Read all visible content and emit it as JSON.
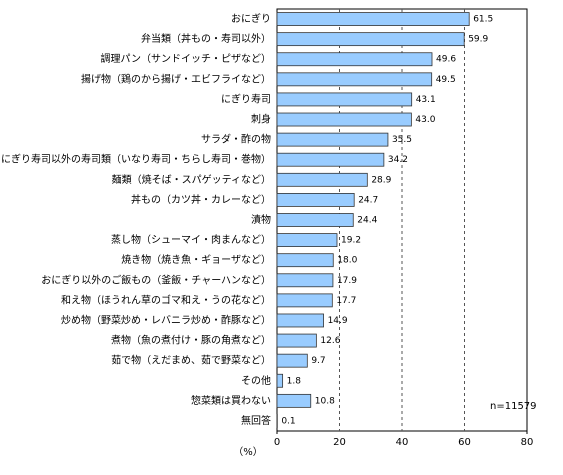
{
  "chart_data": {
    "type": "hbar",
    "categories": [
      "おにぎり",
      "弁当類（丼もの・寿司以外）",
      "調理パン（サンドイッチ・ピザなど）",
      "揚げ物（鶏のから揚げ・エビフライなど）",
      "にぎり寿司",
      "刺身",
      "サラダ・酢の物",
      "にぎり寿司以外の寿司類（いなり寿司・ちらし寿司・巻物）",
      "麺類（焼そば・スパゲッティなど）",
      "丼もの（カツ丼・カレーなど）",
      "漬物",
      "蒸し物（シューマイ・肉まんなど）",
      "焼き物（焼き魚・ギョーザなど）",
      "おにぎり以外のご飯もの（釜飯・チャーハンなど）",
      "和え物（ほうれん草のゴマ和え・うの花など）",
      "炒め物（野菜炒め・レバニラ炒め・酢豚など）",
      "煮物（魚の煮付け・豚の角煮など）",
      "茹で物（えだまめ、茹で野菜など）",
      "その他",
      "惣菜類は買わない",
      "無回答"
    ],
    "values": [
      61.5,
      59.9,
      49.6,
      49.5,
      43.1,
      43.0,
      35.5,
      34.2,
      28.9,
      24.7,
      24.4,
      19.2,
      18.0,
      17.9,
      17.7,
      14.9,
      12.6,
      9.7,
      1.8,
      10.8,
      0.1
    ],
    "value_labels": [
      "61.5",
      "59.9",
      "49.6",
      "49.5",
      "43.1",
      "43.0",
      "35.5",
      "34.2",
      "28.9",
      "24.7",
      "24.4",
      "19.2",
      "18.0",
      "17.9",
      "17.7",
      "14.9",
      "12.6",
      "9.7",
      "1.8",
      "10.8",
      "0.1"
    ],
    "color": "#99ccff",
    "xlim": [
      0,
      80
    ],
    "xticks": [
      0,
      20,
      40,
      60,
      80
    ],
    "grid": true,
    "x_label": "（%）",
    "annotation": "n=11579"
  }
}
